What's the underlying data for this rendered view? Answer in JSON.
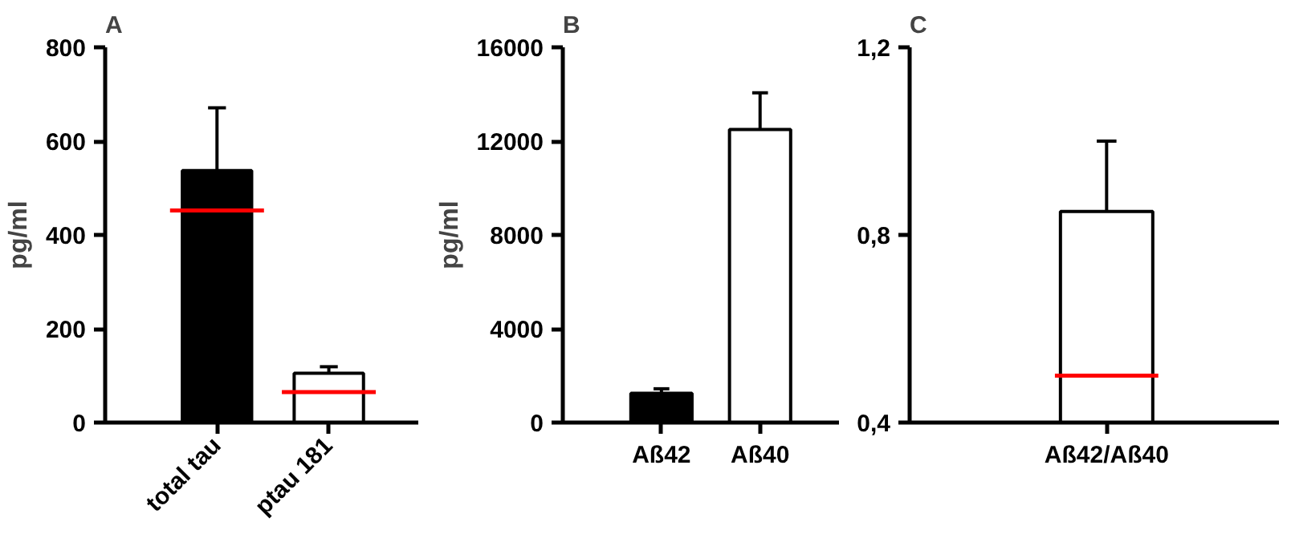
{
  "chart_data": [
    {
      "type": "bar",
      "title": "A",
      "ylabel": "pg/ml",
      "categories": [
        "total tau",
        "ptau 181"
      ],
      "values": [
        537,
        105
      ],
      "colors": [
        "#000000",
        "#ffffff"
      ],
      "errors": [
        [
          537,
          671
        ],
        [
          105,
          119
        ]
      ],
      "ylim": [
        0,
        800
      ],
      "yticks": [
        0,
        200,
        400,
        600,
        800
      ],
      "ref_lines": [
        {
          "axis": "y",
          "value": 452,
          "color": "#ff0000"
        },
        {
          "axis": "y",
          "value": 65,
          "color": "#ff0000"
        }
      ]
    },
    {
      "type": "bar",
      "title": "B",
      "ylabel": "pg/ml",
      "categories": [
        "Aß42",
        "Aß40"
      ],
      "values": [
        1250,
        12500
      ],
      "colors": [
        "#000000",
        "#ffffff"
      ],
      "errors": [
        [
          1250,
          1440
        ],
        [
          12500,
          14060
        ]
      ],
      "ylim": [
        0,
        16000
      ],
      "yticks": [
        0,
        4000,
        8000,
        12000,
        16000
      ]
    },
    {
      "type": "bar",
      "title": "C",
      "categories": [
        "Aß42/Aß40"
      ],
      "values": [
        0.85
      ],
      "colors": [
        "#ffffff"
      ],
      "errors": [
        [
          0.85,
          1.0
        ]
      ],
      "ylim": [
        0.4,
        1.2
      ],
      "yticks": [
        {
          "value": 0.4,
          "label": "0,4"
        },
        {
          "value": 0.8,
          "label": "0,8"
        },
        {
          "value": 1.2,
          "label": "1,2"
        }
      ],
      "ref_lines": [
        {
          "axis": "y",
          "value": 0.5,
          "color": "#ff0000"
        }
      ]
    }
  ]
}
